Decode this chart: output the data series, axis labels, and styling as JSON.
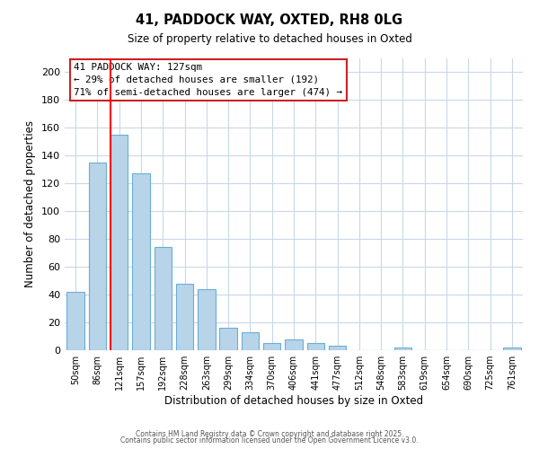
{
  "title1": "41, PADDOCK WAY, OXTED, RH8 0LG",
  "title2": "Size of property relative to detached houses in Oxted",
  "xlabel": "Distribution of detached houses by size in Oxted",
  "ylabel": "Number of detached properties",
  "categories": [
    "50sqm",
    "86sqm",
    "121sqm",
    "157sqm",
    "192sqm",
    "228sqm",
    "263sqm",
    "299sqm",
    "334sqm",
    "370sqm",
    "406sqm",
    "441sqm",
    "477sqm",
    "512sqm",
    "548sqm",
    "583sqm",
    "619sqm",
    "654sqm",
    "690sqm",
    "725sqm",
    "761sqm"
  ],
  "values": [
    42,
    135,
    155,
    127,
    74,
    48,
    44,
    16,
    13,
    5,
    8,
    5,
    3,
    0,
    0,
    2,
    0,
    0,
    0,
    0,
    2
  ],
  "bar_color": "#b8d4e8",
  "bar_edge_color": "#6aaed6",
  "red_line_index": 2,
  "ylim": [
    0,
    210
  ],
  "yticks": [
    0,
    20,
    40,
    60,
    80,
    100,
    120,
    140,
    160,
    180,
    200
  ],
  "annotation_title": "41 PADDOCK WAY: 127sqm",
  "annotation_line1": "← 29% of detached houses are smaller (192)",
  "annotation_line2": "71% of semi-detached houses are larger (474) →",
  "footer1": "Contains HM Land Registry data © Crown copyright and database right 2025.",
  "footer2": "Contains public sector information licensed under the Open Government Licence v3.0.",
  "background_color": "#ffffff",
  "grid_color": "#c8d8e8"
}
